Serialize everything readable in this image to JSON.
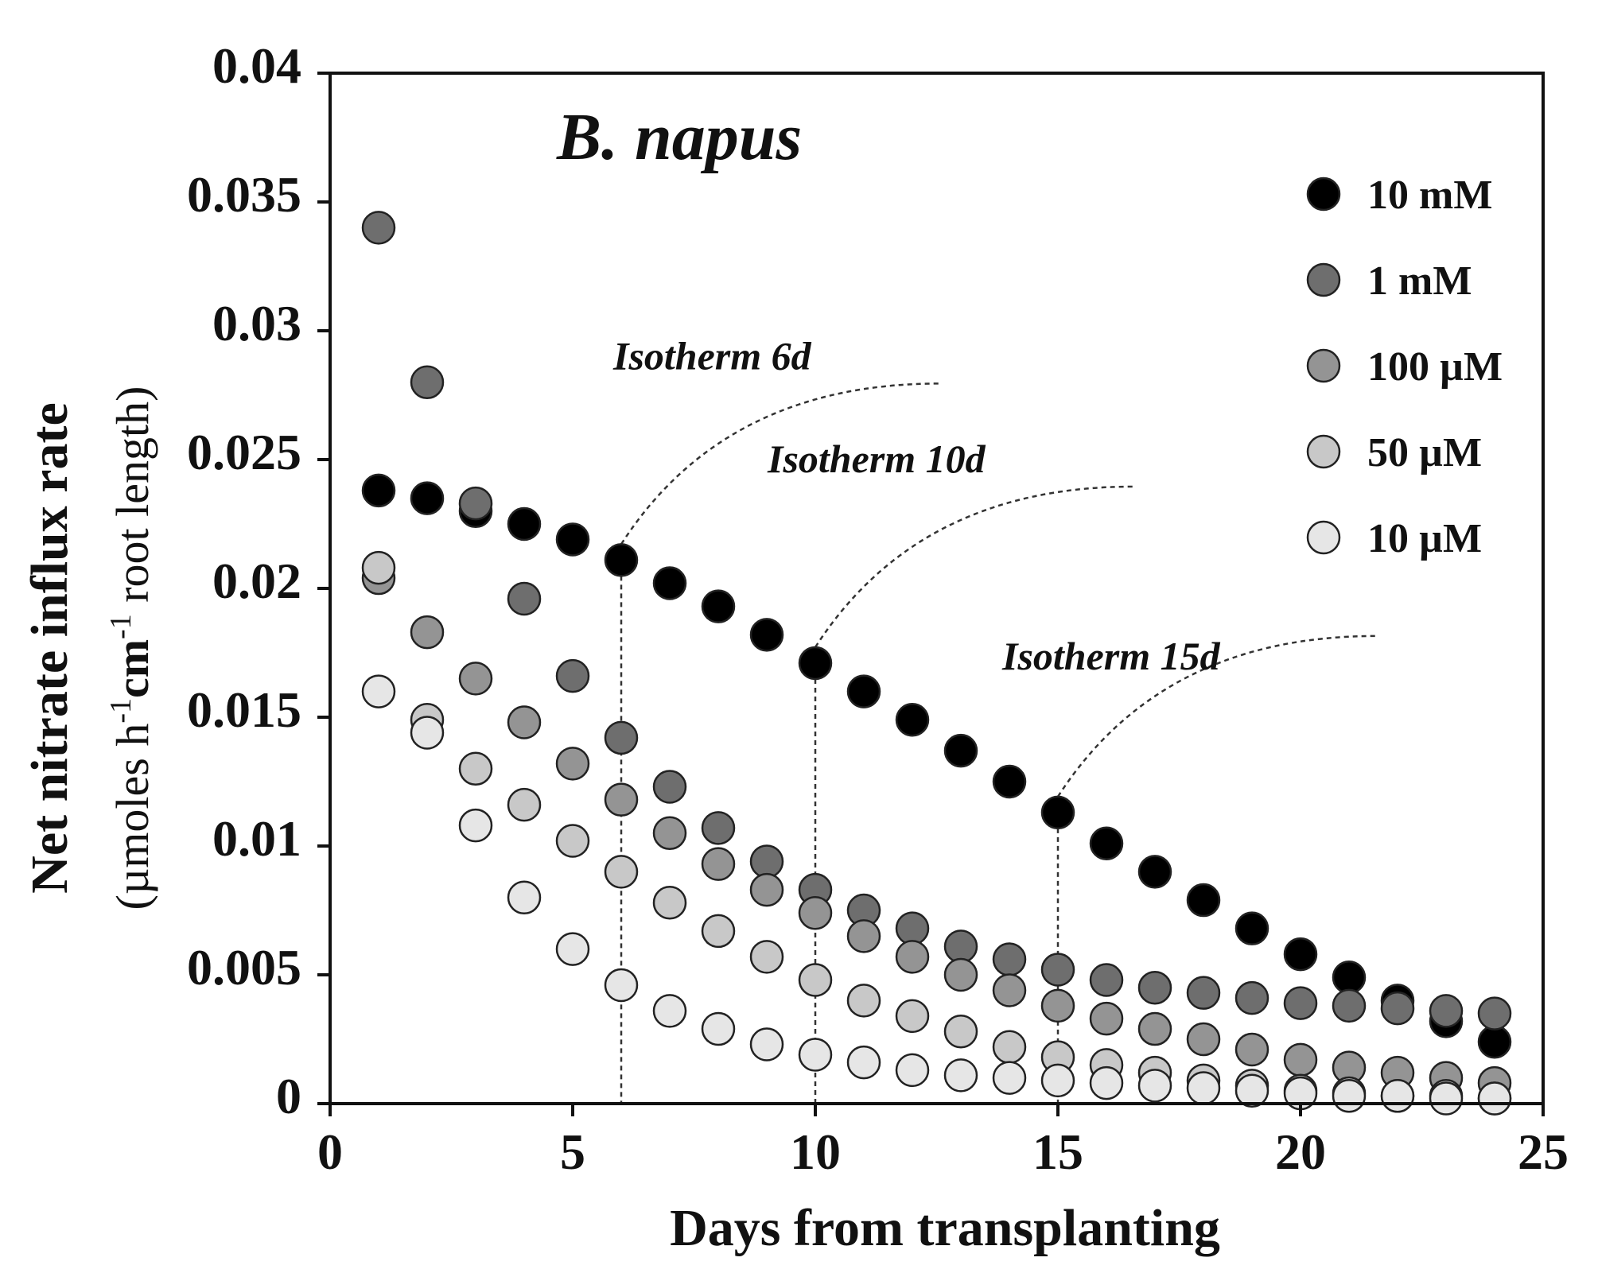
{
  "chart_data": {
    "type": "scatter",
    "title": "B. napus",
    "xlabel": "Days from transplanting",
    "ylabel": "Net nitrate influx rate",
    "ylabel_unit_prefix": "(µmoles h",
    "ylabel_unit_sup1": "-1",
    "ylabel_unit_mid": "cm",
    "ylabel_unit_sup2": "-1",
    "ylabel_unit_suffix": " root length)",
    "xlim": [
      0,
      25
    ],
    "ylim": [
      0,
      0.04
    ],
    "xticks": [
      0,
      5,
      10,
      15,
      20,
      25
    ],
    "xtick_labels": [
      "0",
      "5",
      "10",
      "15",
      "20",
      "25"
    ],
    "yticks": [
      0,
      0.005,
      0.01,
      0.015,
      0.02,
      0.025,
      0.03,
      0.035,
      0.04
    ],
    "ytick_labels": [
      "0",
      "0.005",
      "0.01",
      "0.015",
      "0.02",
      "0.025",
      "0.03",
      "0.035",
      "0.04"
    ],
    "legend_position": "top-right",
    "series": [
      {
        "name": "10 mM",
        "color": "#000000",
        "x": [
          1,
          2,
          3,
          4,
          5,
          6,
          7,
          8,
          9,
          10,
          11,
          12,
          13,
          14,
          15,
          16,
          17,
          18,
          19,
          20,
          21,
          22,
          23,
          24
        ],
        "y": [
          0.0238,
          0.0235,
          0.023,
          0.0225,
          0.0219,
          0.0211,
          0.0202,
          0.0193,
          0.0182,
          0.0171,
          0.016,
          0.0149,
          0.0137,
          0.0125,
          0.0113,
          0.0101,
          0.009,
          0.0079,
          0.0068,
          0.0058,
          0.0049,
          0.004,
          0.0032,
          0.0024
        ]
      },
      {
        "name": "1 mM",
        "color": "#6e6e6e",
        "x": [
          1,
          2,
          3,
          4,
          5,
          6,
          7,
          8,
          9,
          10,
          11,
          12,
          13,
          14,
          15,
          16,
          17,
          18,
          19,
          20,
          21,
          22,
          23,
          24
        ],
        "y": [
          0.034,
          0.028,
          0.0233,
          0.0196,
          0.0166,
          0.0142,
          0.0123,
          0.0107,
          0.0094,
          0.0083,
          0.0075,
          0.0068,
          0.0061,
          0.0056,
          0.0052,
          0.0048,
          0.0045,
          0.0043,
          0.0041,
          0.0039,
          0.0038,
          0.0037,
          0.0036,
          0.0035
        ]
      },
      {
        "name": "100 µM",
        "color": "#949494",
        "x": [
          1,
          2,
          3,
          4,
          5,
          6,
          7,
          8,
          9,
          10,
          11,
          12,
          13,
          14,
          15,
          16,
          17,
          18,
          19,
          20,
          21,
          22,
          23,
          24
        ],
        "y": [
          0.0204,
          0.0183,
          0.0165,
          0.0148,
          0.0132,
          0.0118,
          0.0105,
          0.0093,
          0.0083,
          0.0074,
          0.0065,
          0.0057,
          0.005,
          0.0044,
          0.0038,
          0.0033,
          0.0029,
          0.0025,
          0.0021,
          0.0017,
          0.0014,
          0.0012,
          0.001,
          0.0008
        ]
      },
      {
        "name": "50 µM",
        "color": "#c8c8c8",
        "x": [
          1,
          2,
          3,
          4,
          5,
          6,
          7,
          8,
          9,
          10,
          11,
          12,
          13,
          14,
          15,
          16,
          17,
          18,
          19,
          20,
          21,
          22,
          23,
          24
        ],
        "y": [
          0.0208,
          0.0149,
          0.013,
          0.0116,
          0.0102,
          0.009,
          0.0078,
          0.0067,
          0.0057,
          0.0048,
          0.004,
          0.0034,
          0.0028,
          0.0022,
          0.0018,
          0.0015,
          0.0012,
          0.0009,
          0.0007,
          0.0005,
          0.0004,
          0.0003,
          0.0003,
          0.0002
        ]
      },
      {
        "name": "10 µM",
        "color": "#e6e6e6",
        "x": [
          1,
          2,
          3,
          4,
          5,
          6,
          7,
          8,
          9,
          10,
          11,
          12,
          13,
          14,
          15,
          16,
          17,
          18,
          19,
          20,
          21,
          22,
          23,
          24
        ],
        "y": [
          0.016,
          0.0144,
          0.0108,
          0.008,
          0.006,
          0.0046,
          0.0036,
          0.0029,
          0.0023,
          0.0019,
          0.0016,
          0.0013,
          0.0011,
          0.001,
          0.0009,
          0.0008,
          0.0007,
          0.0006,
          0.0005,
          0.0004,
          0.0003,
          0.0003,
          0.0002,
          0.0002
        ]
      }
    ],
    "annotations": [
      {
        "text": "Isotherm 6d",
        "day": 6,
        "y": 0.0211
      },
      {
        "text": "Isotherm 10d",
        "day": 10,
        "y": 0.0171
      },
      {
        "text": "Isotherm 15d",
        "day": 15,
        "y": 0.0113
      }
    ]
  }
}
